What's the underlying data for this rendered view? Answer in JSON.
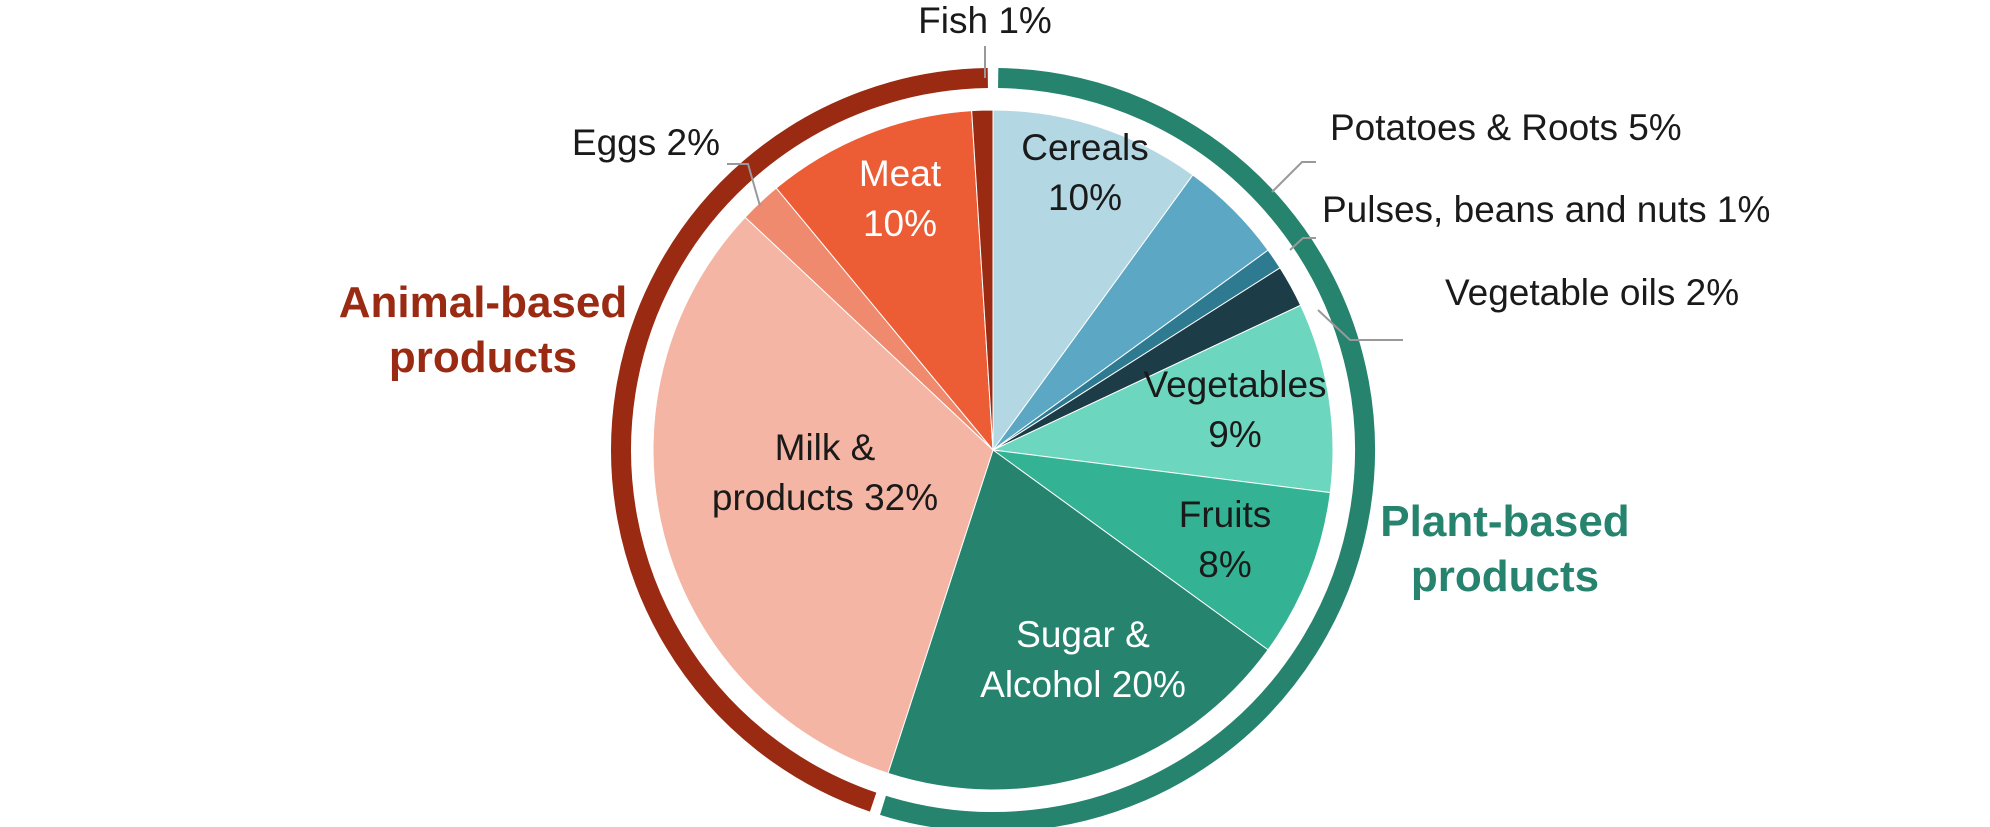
{
  "chart_data": {
    "type": "pie",
    "title": "",
    "categories": [
      "Cereals",
      "Potatoes & Roots",
      "Pulses, beans and nuts",
      "Vegetable oils",
      "Vegetables",
      "Fruits",
      "Sugar & Alcohol",
      "Milk & products",
      "Eggs",
      "Meat",
      "Fish"
    ],
    "values": [
      10,
      5,
      1,
      2,
      9,
      8,
      20,
      32,
      2,
      10,
      1
    ],
    "slices": [
      {
        "name": "Cereals",
        "value": 10,
        "group": "plant",
        "color": "#B3D7E3",
        "label_lines": [
          "Cereals",
          "10%"
        ],
        "label_color": "#1a1a1a"
      },
      {
        "name": "Potatoes & Roots",
        "value": 5,
        "group": "plant",
        "color": "#5BA7C4",
        "label_lines": [
          "Potatoes & Roots 5%"
        ],
        "label_color": "#1a1a1a"
      },
      {
        "name": "Pulses, beans and nuts",
        "value": 1,
        "group": "plant",
        "color": "#2E7A90",
        "label_lines": [
          "Pulses, beans and nuts 1%"
        ],
        "label_color": "#1a1a1a"
      },
      {
        "name": "Vegetable oils",
        "value": 2,
        "group": "plant",
        "color": "#1C3C47",
        "label_lines": [
          "Vegetable oils 2%"
        ],
        "label_color": "#1a1a1a"
      },
      {
        "name": "Vegetables",
        "value": 9,
        "group": "plant",
        "color": "#6DD6BE",
        "label_lines": [
          "Vegetables",
          "9%"
        ],
        "label_color": "#1a1a1a"
      },
      {
        "name": "Fruits",
        "value": 8,
        "group": "plant",
        "color": "#33B393",
        "label_lines": [
          "Fruits",
          "8%"
        ],
        "label_color": "#1a1a1a"
      },
      {
        "name": "Sugar & Alcohol",
        "value": 20,
        "group": "plant",
        "color": "#25836E",
        "label_lines": [
          "Sugar &",
          "Alcohol 20%"
        ],
        "label_color": "#ffffff"
      },
      {
        "name": "Milk & products",
        "value": 32,
        "group": "animal",
        "color": "#F4B5A4",
        "label_lines": [
          "Milk &",
          "products 32%"
        ],
        "label_color": "#1a1a1a"
      },
      {
        "name": "Eggs",
        "value": 2,
        "group": "animal",
        "color": "#EF8A6E",
        "label_lines": [
          "Eggs 2%"
        ],
        "label_color": "#1a1a1a"
      },
      {
        "name": "Meat",
        "value": 10,
        "group": "animal",
        "color": "#EC5D36",
        "label_lines": [
          "Meat",
          "10%"
        ],
        "label_color": "#ffffff"
      },
      {
        "name": "Fish",
        "value": 1,
        "group": "animal",
        "color": "#9A2A12",
        "label_lines": [
          "Fish 1%"
        ],
        "label_color": "#1a1a1a"
      }
    ],
    "groups": [
      {
        "name": "Animal-based products",
        "label_lines": [
          "Animal-based",
          "products"
        ],
        "color": "#9A2A12"
      },
      {
        "name": "Plant-based products",
        "label_lines": [
          "Plant-based",
          "products"
        ],
        "color": "#25836E"
      }
    ],
    "legend": "none"
  }
}
